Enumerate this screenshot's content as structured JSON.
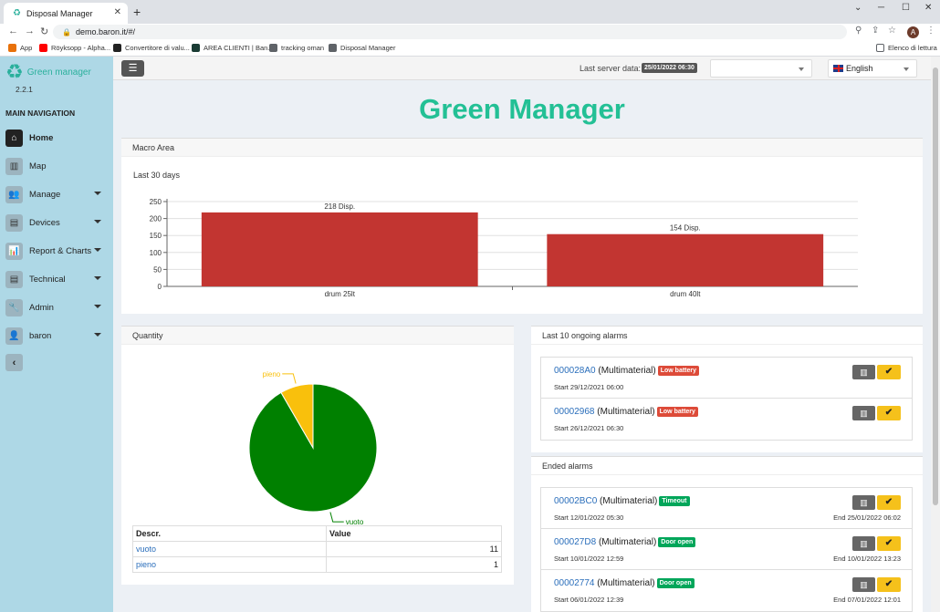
{
  "browser": {
    "tab_title": "Disposal Manager",
    "url": "demo.baron.it/#/",
    "profile_initial": "A",
    "reading_list": "Elenco di lettura",
    "bookmarks": [
      {
        "label": "App",
        "color": "#e8710a"
      },
      {
        "label": "Röyksopp - Alpha...",
        "color": "#ff0000"
      },
      {
        "label": "Convertitore di valu...",
        "color": "#222222"
      },
      {
        "label": "AREA CLIENTI | Ban...",
        "color": "#1a3c34"
      },
      {
        "label": "tracking oman",
        "color": "#5f6368"
      },
      {
        "label": "Disposal Manager",
        "color": "#5f6368"
      }
    ]
  },
  "app": {
    "brand": "Green manager",
    "version": "2.2.1",
    "nav_header": "MAIN NAVIGATION",
    "nav": [
      {
        "label": "Home",
        "icon": "home-icon"
      },
      {
        "label": "Map",
        "icon": "map-icon"
      },
      {
        "label": "Manage",
        "icon": "users-icon"
      },
      {
        "label": "Devices",
        "icon": "archive-icon"
      },
      {
        "label": "Report & Charts",
        "icon": "bar-chart-icon"
      },
      {
        "label": "Technical",
        "icon": "archive-icon"
      },
      {
        "label": "Admin",
        "icon": "wrench-icon"
      },
      {
        "label": "baron",
        "icon": "user-icon"
      }
    ],
    "topbar": {
      "server_label": "Last server data:",
      "server_date": "25/01/2022 06:30",
      "empty_select": "",
      "language": "English"
    },
    "page_title": "Green Manager",
    "colors": {
      "accent": "#23c095",
      "bar": "#c23531",
      "pie_vuoto": "#008000",
      "pie_pieno": "#f9c00c"
    }
  },
  "macro": {
    "title": "Macro Area",
    "subtitle": "Last 30 days"
  },
  "quantity": {
    "title": "Quantity",
    "table_headers": [
      "Descr.",
      "Value"
    ],
    "rows": [
      {
        "descr": "vuoto",
        "value": "11"
      },
      {
        "descr": "pieno",
        "value": "1"
      }
    ]
  },
  "ongoing": {
    "title": "Last 10 ongoing alarms",
    "items": [
      {
        "id": "000028A0",
        "type": "(Multimaterial)",
        "badge": "Low battery",
        "start": "Start 29/12/2021 06:00"
      },
      {
        "id": "00002968",
        "type": "(Multimaterial)",
        "badge": "Low battery",
        "start": "Start 26/12/2021 06:30"
      }
    ]
  },
  "ended": {
    "title": "Ended alarms",
    "items": [
      {
        "id": "00002BC0",
        "type": "(Multimaterial)",
        "badge": "Timeout",
        "start": "Start 12/01/2022 05:30",
        "end": "End 25/01/2022 06:02"
      },
      {
        "id": "000027D8",
        "type": "(Multimaterial)",
        "badge": "Door open",
        "start": "Start 10/01/2022 12:59",
        "end": "End 10/01/2022 13:23"
      },
      {
        "id": "00002774",
        "type": "(Multimaterial)",
        "badge": "Door open",
        "start": "Start 06/01/2022 12:39",
        "end": "End 07/01/2022 12:01"
      }
    ]
  },
  "chart_data": [
    {
      "type": "bar",
      "categories": [
        "drum 25lt",
        "drum 40lt"
      ],
      "values": [
        218,
        154
      ],
      "data_labels": [
        "218 Disp.",
        "154 Disp."
      ],
      "yticks": [
        "0",
        "50",
        "100",
        "150",
        "200",
        "250"
      ],
      "ylim": [
        0,
        250
      ],
      "grid": true
    },
    {
      "type": "pie",
      "labels": [
        "vuoto",
        "pieno"
      ],
      "values": [
        11,
        1
      ]
    }
  ]
}
